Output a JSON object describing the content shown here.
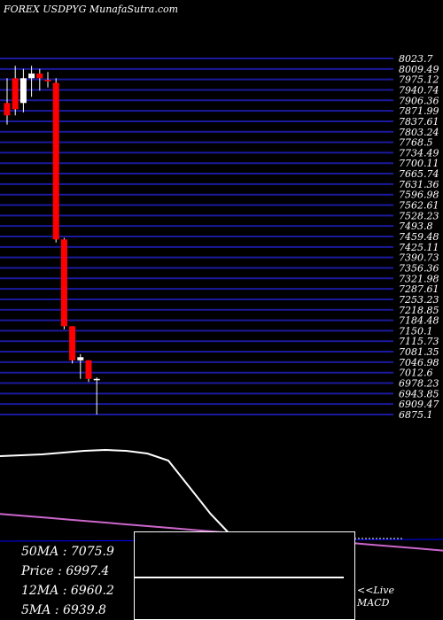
{
  "title": "FOREX  USDPYG MunafaSutra.com",
  "colors": {
    "grid": "#1a1a9e",
    "up": "#ffffff",
    "down": "#ff0000",
    "ma_line": "#ffffff",
    "pink_line": "#cc66cc",
    "blue_line": "#0000ff"
  },
  "chart_data": {
    "type": "candlestick",
    "title": "FOREX  USDPYG MunafaSutra.com",
    "price_axis_labels": [
      "8023.7",
      "8009.49",
      "7975.12",
      "7940.74",
      "7906.36",
      "7871.99",
      "7837.61",
      "7803.24",
      "7768.5",
      "7734.49",
      "7700.11",
      "7665.74",
      "7631.36",
      "7596.98",
      "7562.61",
      "7528.23",
      "7493.8",
      "7459.48",
      "7425.11",
      "7390.73",
      "7356.36",
      "7321.98",
      "7287.61",
      "7253.23",
      "7218.85",
      "7184.48",
      "7150.1",
      "7115.73",
      "7081.35",
      "7046.98",
      "7012.6",
      "6978.23",
      "6943.85",
      "6909.47",
      "6875.1"
    ],
    "ylim": [
      6875.1,
      8023.7
    ],
    "candles": [
      {
        "open": 7880,
        "high": 7960,
        "low": 7810,
        "close": 7840
      },
      {
        "open": 7960,
        "high": 8000,
        "low": 7840,
        "close": 7860
      },
      {
        "open": 7880,
        "high": 7990,
        "low": 7850,
        "close": 7960
      },
      {
        "open": 7960,
        "high": 8000,
        "low": 7900,
        "close": 7975
      },
      {
        "open": 7975,
        "high": 7990,
        "low": 7920,
        "close": 7960
      },
      {
        "open": 7955,
        "high": 7980,
        "low": 7930,
        "close": 7950
      },
      {
        "open": 7945,
        "high": 7960,
        "low": 7430,
        "close": 7440
      },
      {
        "open": 7440,
        "high": 7445,
        "low": 7150,
        "close": 7160
      },
      {
        "open": 7160,
        "high": 7160,
        "low": 7040,
        "close": 7050
      },
      {
        "open": 7050,
        "high": 7070,
        "low": 6990,
        "close": 7060
      },
      {
        "open": 7050,
        "high": 7050,
        "low": 6980,
        "close": 6990
      },
      {
        "open": 6990,
        "high": 6995,
        "low": 6875,
        "close": 6990
      }
    ],
    "ma_line_values": [
      125,
      126,
      127,
      129,
      131,
      132,
      131,
      128,
      120,
      90,
      60,
      35,
      20,
      15,
      13,
      12,
      12
    ],
    "pink_line_values": [
      26,
      25,
      24,
      23,
      22,
      21,
      20,
      19,
      18,
      17,
      16,
      15,
      14,
      13,
      12,
      11,
      10,
      9,
      8
    ],
    "blue_line_values": [
      0,
      0
    ]
  },
  "stats": {
    "ma50": "50MA : 7075.9",
    "price": "Price  : 6997.4",
    "ma12": "12MA : 6960.2",
    "ma5": "5MA : 6939.8"
  },
  "macd": {
    "live_label_1": "<<Live",
    "live_label_2": "MACD"
  }
}
